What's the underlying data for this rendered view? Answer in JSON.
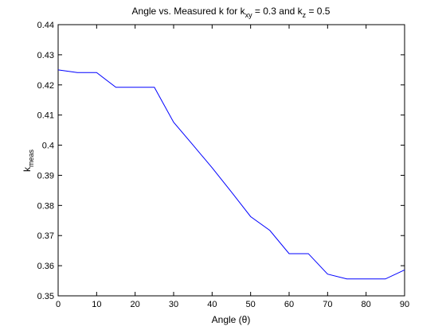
{
  "chart_data": {
    "type": "line",
    "title_parts": {
      "lead": "Angle vs. Measured k for k",
      "sub1": "xy",
      "mid": " = 0.3 and k",
      "sub2": "z",
      "tail": " = 0.5"
    },
    "xlabel": "Angle (θ)",
    "ylabel_main": "k",
    "ylabel_sub": "meas",
    "xlim": [
      0,
      90
    ],
    "ylim": [
      0.35,
      0.44
    ],
    "xticks": [
      "0",
      "10",
      "20",
      "30",
      "40",
      "50",
      "60",
      "70",
      "80",
      "90"
    ],
    "yticks": [
      "0.35",
      "0.36",
      "0.37",
      "0.38",
      "0.39",
      "0.4",
      "0.41",
      "0.42",
      "0.43",
      "0.44"
    ],
    "grid": false,
    "series": [
      {
        "color": "#0000ff",
        "x": [
          0,
          5,
          10,
          15,
          20,
          25,
          30,
          35,
          40,
          45,
          50,
          55,
          60,
          65,
          70,
          75,
          80,
          85,
          90
        ],
        "y": [
          0.425,
          0.4241,
          0.4241,
          0.4192,
          0.4192,
          0.4192,
          0.4076,
          0.4001,
          0.3925,
          0.3845,
          0.3763,
          0.3717,
          0.364,
          0.364,
          0.3572,
          0.3556,
          0.3556,
          0.3556,
          0.3586
        ]
      }
    ]
  }
}
